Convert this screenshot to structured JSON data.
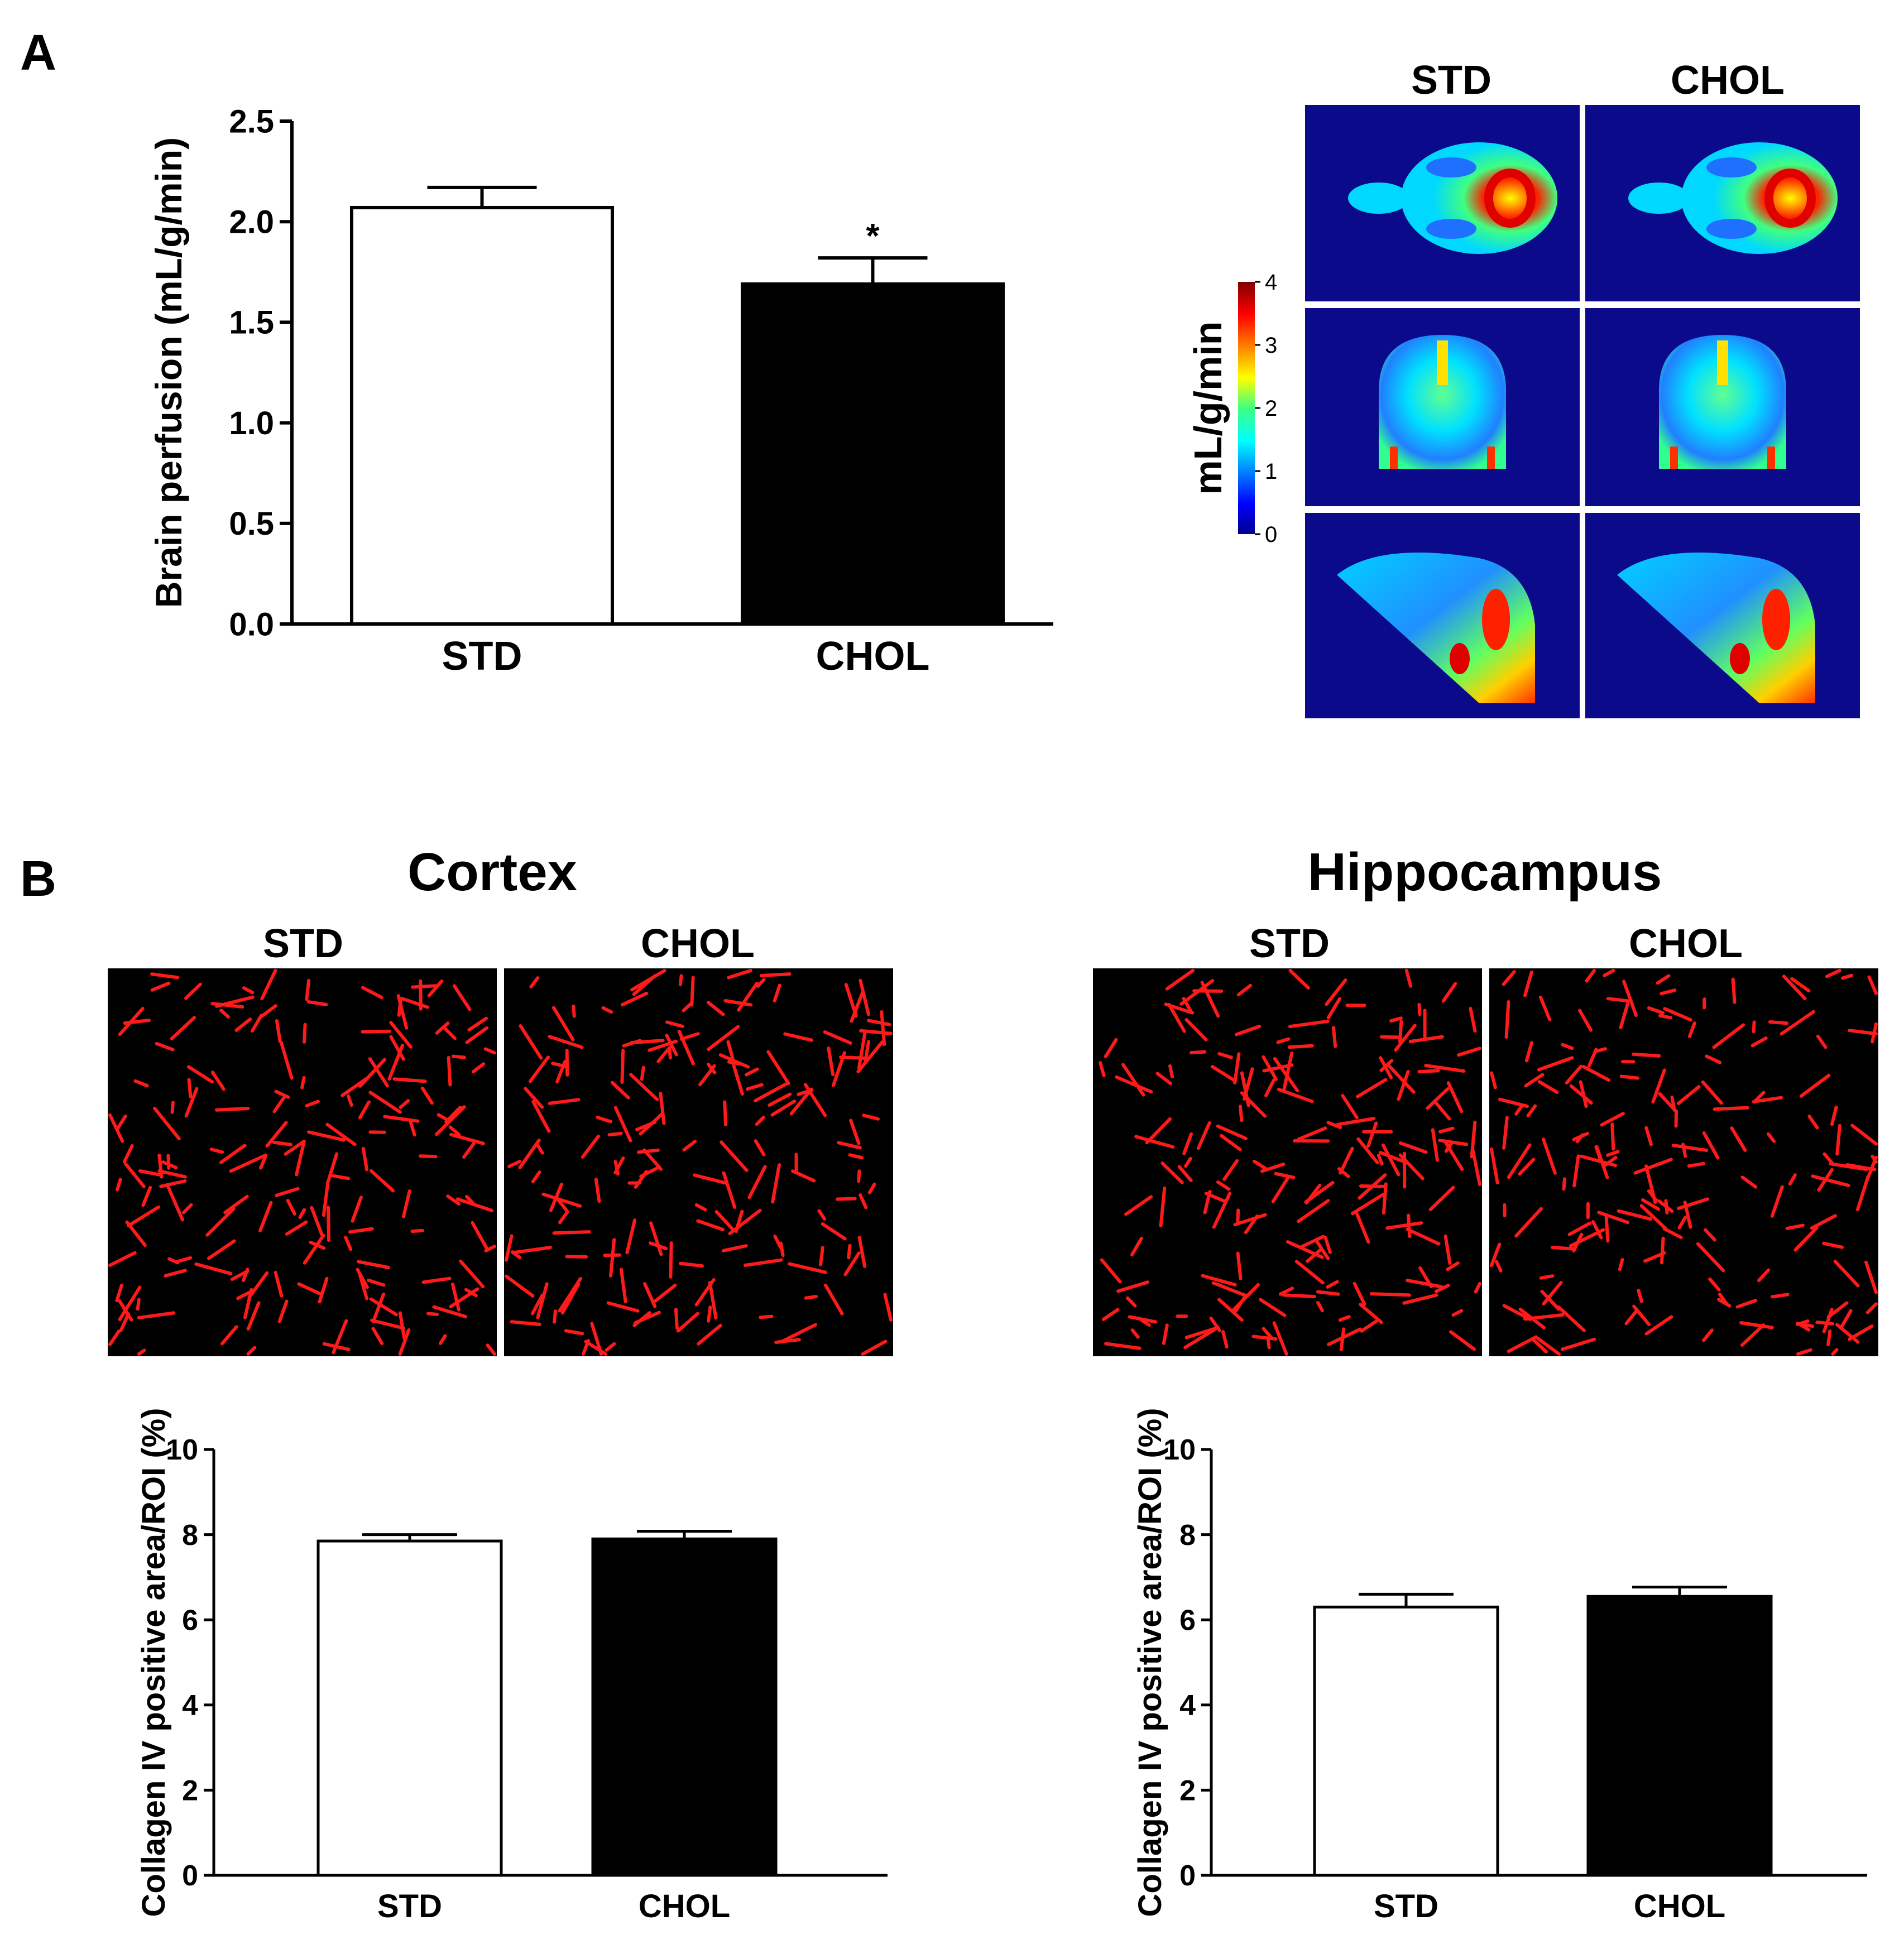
{
  "panels": {
    "A": {
      "letter": "A"
    },
    "B": {
      "letter": "B"
    }
  },
  "colors": {
    "std_fill": "#ffffff",
    "chol_fill": "#000000",
    "map_bg": "#0a0a8a",
    "micro_bg": "#000000",
    "vessel": "#ff1a1a"
  },
  "perfusion_maps": {
    "columns": [
      "STD",
      "CHOL"
    ],
    "views": [
      "axial",
      "coronal",
      "sagittal"
    ],
    "colorbar": {
      "label": "mL/g/min",
      "ticks": [
        "4",
        "3",
        "2",
        "1",
        "0"
      ],
      "min": 0,
      "max": 4
    }
  },
  "micrographs": {
    "cortex": {
      "title": "Cortex",
      "columns": [
        "STD",
        "CHOL"
      ]
    },
    "hippocampus": {
      "title": "Hippocampus",
      "columns": [
        "STD",
        "CHOL"
      ]
    }
  },
  "chart_data": [
    {
      "id": "perfusion",
      "type": "bar",
      "title": "",
      "xlabel": "",
      "ylabel": "Brain perfusion (mL/g/min)",
      "categories": [
        "STD",
        "CHOL"
      ],
      "values": [
        2.07,
        1.69
      ],
      "errors": [
        0.1,
        0.13
      ],
      "significance": [
        "",
        "*"
      ],
      "ylim": [
        0,
        2.5
      ],
      "yticks": [
        "0.0",
        "0.5",
        "1.0",
        "1.5",
        "2.0",
        "2.5"
      ],
      "grid": false
    },
    {
      "id": "cortex",
      "type": "bar",
      "title": "Cortex",
      "xlabel": "",
      "ylabel": "Collagen IV positive area/ROI (%)",
      "categories": [
        "STD",
        "CHOL"
      ],
      "values": [
        7.85,
        7.9
      ],
      "errors": [
        0.15,
        0.18
      ],
      "ylim": [
        0,
        10
      ],
      "yticks": [
        "0",
        "2",
        "4",
        "6",
        "8",
        "10"
      ],
      "grid": false
    },
    {
      "id": "hippocampus",
      "type": "bar",
      "title": "Hippocampus",
      "xlabel": "",
      "ylabel": "Collagen IV positive area/ROI (%)",
      "categories": [
        "STD",
        "CHOL"
      ],
      "values": [
        6.3,
        6.55
      ],
      "errors": [
        0.3,
        0.22
      ],
      "ylim": [
        0,
        10
      ],
      "yticks": [
        "0",
        "2",
        "4",
        "6",
        "8",
        "10"
      ],
      "grid": false
    }
  ]
}
